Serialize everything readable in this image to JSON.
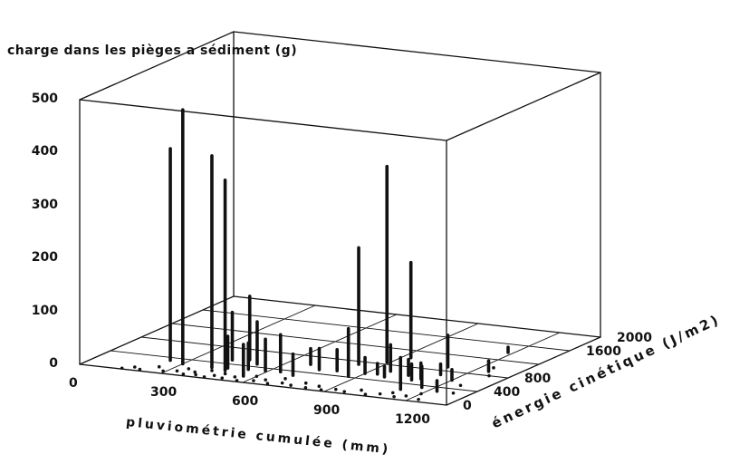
{
  "chart_data": {
    "type": "3d-scatter",
    "title": "",
    "zlabel": "charge dans les pièges a sédiment (g)",
    "xlabel": "pluviométrie cumulée (mm)",
    "ylabel": "énergie cinétique (J/m2)",
    "xlim": [
      0,
      1350
    ],
    "ylim": [
      0,
      2000
    ],
    "zlim": [
      0,
      500
    ],
    "xticks": [
      "0",
      "300",
      "600",
      "900",
      "1200"
    ],
    "yticks": [
      "0",
      "400",
      "800",
      "1600",
      "2000"
    ],
    "zticks": [
      "0",
      "100",
      "200",
      "300",
      "400",
      "500"
    ],
    "grid": true,
    "stems": [
      {
        "x": 240,
        "y": 330,
        "z": 400
      },
      {
        "x": 300,
        "y": 280,
        "z": 480
      },
      {
        "x": 410,
        "y": 270,
        "z": 400
      },
      {
        "x": 470,
        "y": 230,
        "z": 360
      },
      {
        "x": 420,
        "y": 500,
        "z": 90
      },
      {
        "x": 460,
        "y": 300,
        "z": 60
      },
      {
        "x": 470,
        "y": 550,
        "z": 120
      },
      {
        "x": 520,
        "y": 470,
        "z": 80
      },
      {
        "x": 530,
        "y": 320,
        "z": 50
      },
      {
        "x": 560,
        "y": 150,
        "z": 60
      },
      {
        "x": 590,
        "y": 330,
        "z": 60
      },
      {
        "x": 640,
        "y": 350,
        "z": 70
      },
      {
        "x": 680,
        "y": 600,
        "z": 30
      },
      {
        "x": 700,
        "y": 300,
        "z": 40
      },
      {
        "x": 740,
        "y": 500,
        "z": 40
      },
      {
        "x": 800,
        "y": 520,
        "z": 40
      },
      {
        "x": 820,
        "y": 730,
        "z": 220
      },
      {
        "x": 870,
        "y": 420,
        "z": 90
      },
      {
        "x": 900,
        "y": 530,
        "z": 30
      },
      {
        "x": 890,
        "y": 850,
        "z": 370
      },
      {
        "x": 930,
        "y": 1020,
        "z": 180
      },
      {
        "x": 940,
        "y": 550,
        "z": 20
      },
      {
        "x": 960,
        "y": 650,
        "z": 50
      },
      {
        "x": 980,
        "y": 500,
        "z": 20
      },
      {
        "x": 1040,
        "y": 600,
        "z": 30
      },
      {
        "x": 1080,
        "y": 500,
        "z": 30
      },
      {
        "x": 1100,
        "y": 550,
        "z": 30
      },
      {
        "x": 1100,
        "y": 900,
        "z": 60
      },
      {
        "x": 1110,
        "y": 250,
        "z": 60
      },
      {
        "x": 1130,
        "y": 700,
        "z": 20
      },
      {
        "x": 1160,
        "y": 350,
        "z": 40
      },
      {
        "x": 1180,
        "y": 1400,
        "z": 10
      },
      {
        "x": 1200,
        "y": 600,
        "z": 20
      },
      {
        "x": 1230,
        "y": 300,
        "z": 20
      },
      {
        "x": 1250,
        "y": 900,
        "z": 20
      }
    ],
    "zeros": [
      {
        "x": 150,
        "y": 20
      },
      {
        "x": 180,
        "y": 80
      },
      {
        "x": 210,
        "y": 40
      },
      {
        "x": 250,
        "y": 150
      },
      {
        "x": 290,
        "y": 60
      },
      {
        "x": 330,
        "y": 100
      },
      {
        "x": 350,
        "y": 180
      },
      {
        "x": 370,
        "y": 40
      },
      {
        "x": 390,
        "y": 120
      },
      {
        "x": 410,
        "y": 60
      },
      {
        "x": 430,
        "y": 200
      },
      {
        "x": 450,
        "y": 30
      },
      {
        "x": 470,
        "y": 90
      },
      {
        "x": 490,
        "y": 160
      },
      {
        "x": 510,
        "y": 50
      },
      {
        "x": 540,
        "y": 110
      },
      {
        "x": 570,
        "y": 30
      },
      {
        "x": 600,
        "y": 180
      },
      {
        "x": 620,
        "y": 70
      },
      {
        "x": 650,
        "y": 120
      },
      {
        "x": 680,
        "y": 40
      },
      {
        "x": 700,
        "y": 200
      },
      {
        "x": 720,
        "y": 90
      },
      {
        "x": 760,
        "y": 60
      },
      {
        "x": 790,
        "y": 150
      },
      {
        "x": 820,
        "y": 40
      },
      {
        "x": 850,
        "y": 110
      },
      {
        "x": 880,
        "y": 30
      },
      {
        "x": 920,
        "y": 80
      },
      {
        "x": 960,
        "y": 50
      },
      {
        "x": 1000,
        "y": 130
      },
      {
        "x": 1040,
        "y": 40
      },
      {
        "x": 1080,
        "y": 90
      },
      {
        "x": 1110,
        "y": 150
      },
      {
        "x": 1140,
        "y": 60
      },
      {
        "x": 1170,
        "y": 110
      },
      {
        "x": 1200,
        "y": 200
      },
      {
        "x": 1230,
        "y": 60
      },
      {
        "x": 1260,
        "y": 500
      },
      {
        "x": 1290,
        "y": 300
      },
      {
        "x": 1240,
        "y": 1000
      },
      {
        "x": 1280,
        "y": 800
      }
    ]
  }
}
